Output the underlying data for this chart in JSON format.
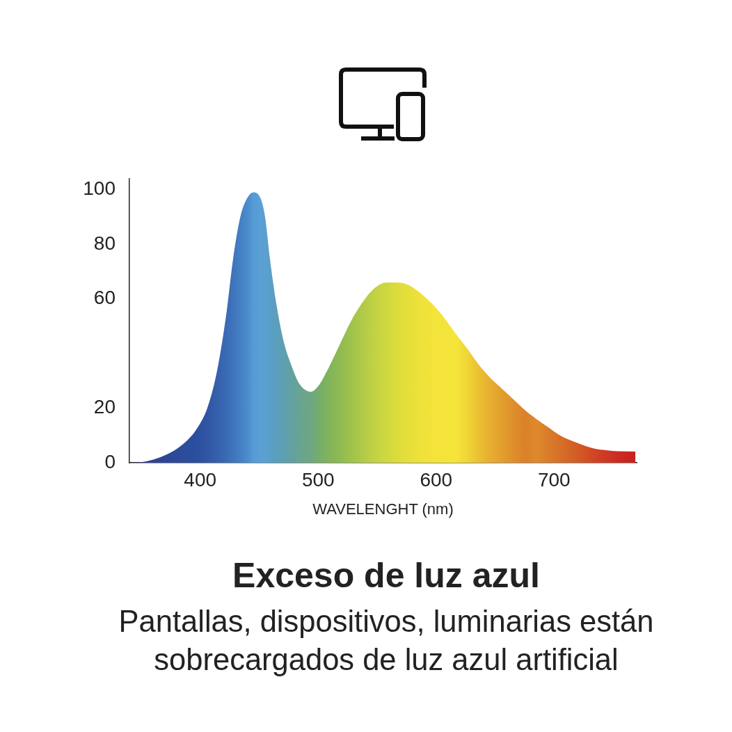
{
  "chart_data": {
    "type": "area",
    "title": "Exceso de luz azul",
    "subtitle": "Pantallas, dispositivos, luminarias están sobrecargados de luz azul artificial",
    "xlabel": "WAVELENGHT (nm)",
    "x": [
      340,
      343,
      366,
      386,
      398,
      406,
      414,
      422,
      428,
      434,
      440,
      445,
      451,
      455,
      459,
      465,
      471,
      477,
      484,
      494,
      500,
      508,
      518,
      528,
      538,
      548,
      558,
      567,
      577,
      587,
      597,
      607,
      617,
      626,
      636,
      646,
      656,
      666,
      676,
      685,
      695,
      705,
      715,
      725,
      735,
      744,
      754,
      769
    ],
    "series": [
      {
        "values": [
          0,
          0,
          2,
          7,
          13,
          20,
          33,
          54,
          75,
          90,
          97,
          99,
          97,
          90,
          75,
          57,
          44,
          36,
          29,
          26,
          28,
          34,
          43,
          52,
          59,
          64,
          66,
          66,
          65,
          62,
          58,
          53,
          47,
          42,
          36,
          31,
          27,
          23,
          19,
          16,
          13,
          10,
          8,
          6.4,
          5.1,
          4.6,
          4.2,
          4.1
        ],
        "colors": [
          "#3a3a8c",
          "#3a3d8e",
          "#2f4592",
          "#2c4c9c",
          "#2d4f9f",
          "#3056a5",
          "#3560ab",
          "#3a6ab3",
          "#3f74bb",
          "#4480c4",
          "#4b8ccc",
          "#559bd4",
          "#5aa0d6",
          "#5ba0d0",
          "#5a9fc8",
          "#5a9fbc",
          "#5ea0b0",
          "#62a0a2",
          "#68a394",
          "#6ea782",
          "#75ac6e",
          "#80b35c",
          "#8eba52",
          "#a0c24c",
          "#b2ca48",
          "#c2d244",
          "#d0d840",
          "#dcdc3c",
          "#e6df3a",
          "#eee23a",
          "#f3e33a",
          "#f4e43a",
          "#f5e43a",
          "#f0d636",
          "#ebc032",
          "#e6ae30",
          "#e29e2e",
          "#de8e2c",
          "#da802a",
          "#de8a2c",
          "#da7c2a",
          "#d67028",
          "#d46226",
          "#d25424",
          "#d04424",
          "#ce3823",
          "#cc2c22",
          "#c82020"
        ]
      }
    ],
    "xlim": [
      340,
      770
    ],
    "xticks": [
      400,
      500,
      600,
      700
    ],
    "ylim": [
      0,
      104
    ],
    "yticks": [
      0,
      20,
      60,
      80,
      100
    ],
    "grid": false,
    "legend": false
  }
}
